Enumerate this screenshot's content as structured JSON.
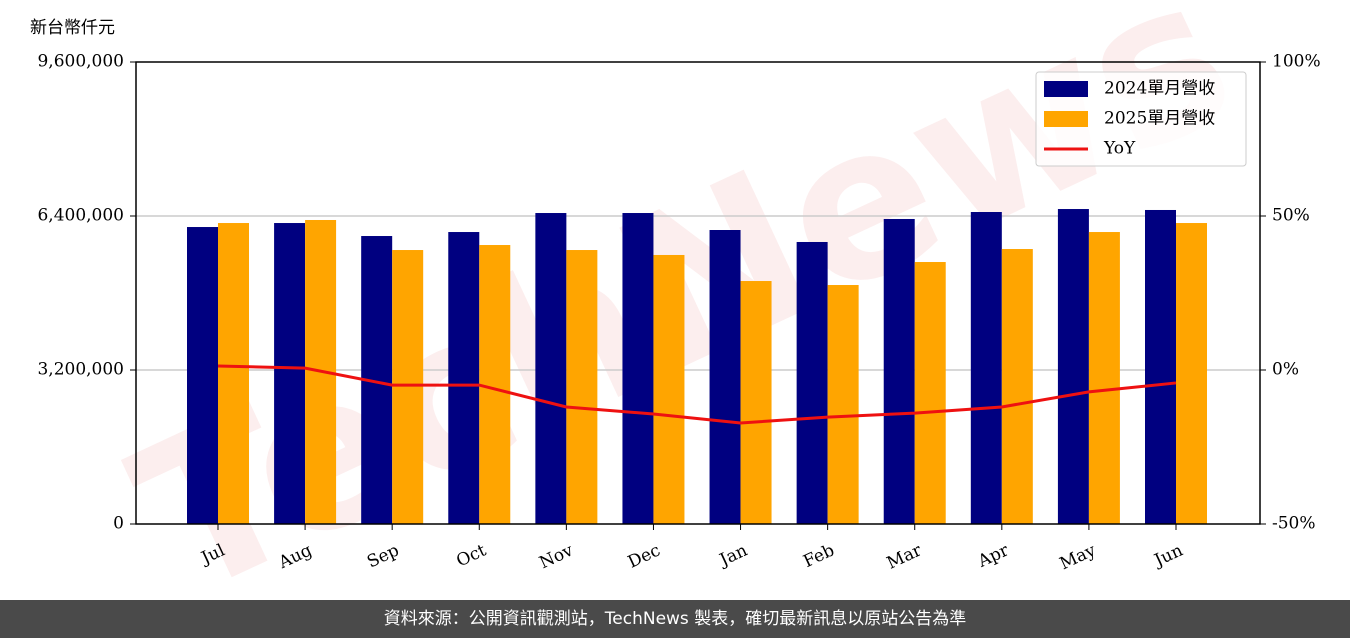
{
  "chart_data": {
    "type": "bar",
    "y_label": "新台幣仟元",
    "watermark": "TechNews",
    "footer": "資料來源：公開資訊觀測站，TechNews 製表，確切最新訊息以原站公告為準",
    "categories": [
      "Jul",
      "Aug",
      "Sep",
      "Oct",
      "Nov",
      "Dec",
      "Jan",
      "Feb",
      "Mar",
      "Apr",
      "May",
      "Jun"
    ],
    "series": [
      {
        "name": "2024單月營收",
        "color": "#000080",
        "values": [
          6171000,
          6254000,
          5984000,
          6067000,
          6462000,
          6462000,
          6109000,
          5860000,
          6338000,
          6483000,
          6545000,
          6525000
        ]
      },
      {
        "name": "2025單月營收",
        "color": "#ffa500",
        "values": [
          6254000,
          6317000,
          5693000,
          5797000,
          5693000,
          5590000,
          5049000,
          4966000,
          5444000,
          5714000,
          6067000,
          6254000
        ]
      },
      {
        "name": "YoY",
        "color": "#ee1111",
        "type": "line",
        "axis": "y2",
        "values": [
          1.3,
          0.6,
          -4.9,
          -4.9,
          -12,
          -14.3,
          -17.2,
          -15.3,
          -14,
          -12,
          -7.1,
          -4.2
        ]
      }
    ],
    "ylim": [
      0,
      9600000
    ],
    "yticks": [
      {
        "value": 0,
        "label": "0"
      },
      {
        "value": 3200000,
        "label": "3,200,000"
      },
      {
        "value": 6400000,
        "label": "6,400,000"
      },
      {
        "value": 9600000,
        "label": "9,600,000"
      }
    ],
    "y2lim": [
      -50,
      100
    ],
    "y2ticks": [
      {
        "value": -50,
        "label": "-50%"
      },
      {
        "value": 0,
        "label": "0%"
      },
      {
        "value": 50,
        "label": "50%"
      },
      {
        "value": 100,
        "label": "100%"
      }
    ],
    "grid": true,
    "legend": "upper right"
  }
}
